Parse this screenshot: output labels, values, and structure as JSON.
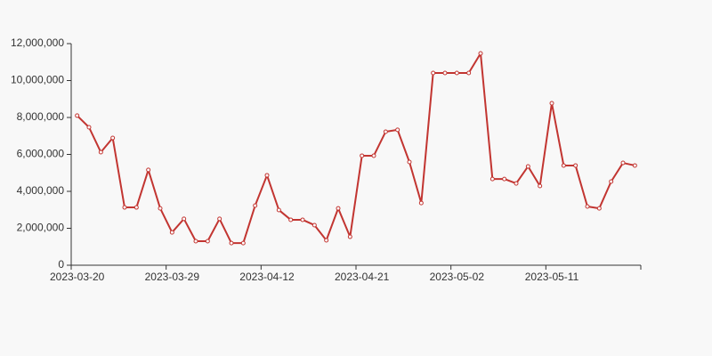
{
  "chart_data": {
    "type": "line",
    "categories": [
      "2023-03-20",
      null,
      null,
      null,
      null,
      null,
      null,
      null,
      "2023-03-29",
      null,
      null,
      null,
      null,
      null,
      null,
      null,
      "2023-04-12",
      null,
      null,
      null,
      null,
      null,
      null,
      null,
      "2023-04-21",
      null,
      null,
      null,
      null,
      null,
      null,
      null,
      "2023-05-02",
      null,
      null,
      null,
      null,
      null,
      null,
      null,
      "2023-05-11",
      null,
      null,
      null,
      null,
      null,
      null,
      null
    ],
    "values": [
      8100000,
      7470000,
      6120000,
      6890000,
      3130000,
      3130000,
      5160000,
      3080000,
      1780000,
      2510000,
      1300000,
      1300000,
      2510000,
      1200000,
      1200000,
      3230000,
      4870000,
      2990000,
      2460000,
      2460000,
      2170000,
      1350000,
      3080000,
      1540000,
      5930000,
      5930000,
      7230000,
      7330000,
      5590000,
      3370000,
      10410000,
      10410000,
      10410000,
      10410000,
      11470000,
      4670000,
      4670000,
      4430000,
      5350000,
      4290000,
      8770000,
      5400000,
      5400000,
      3180000,
      3080000,
      4530000,
      5540000,
      5400000
    ],
    "color": "#c23531",
    "ylim": [
      0,
      12000000
    ],
    "yticks": [
      0,
      {
        "value": 2000000,
        "label": "2,000,000"
      },
      {
        "value": 4000000,
        "label": "4,000,000"
      },
      {
        "value": 6000000,
        "label": "6,000,000"
      },
      {
        "value": 8000000,
        "label": "8,000,000"
      },
      {
        "value": 10000000,
        "label": "10,000,000"
      },
      {
        "value": 12000000,
        "label": "12,000,000"
      }
    ],
    "grid": false
  }
}
